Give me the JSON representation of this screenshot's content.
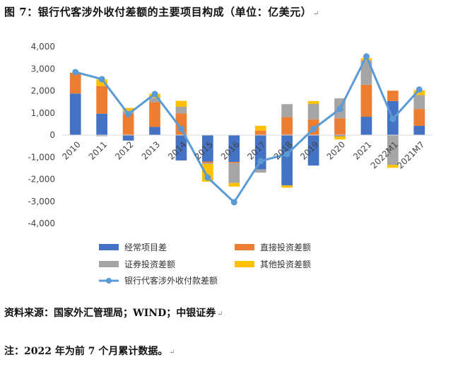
{
  "figure_title": "图 7：银行代客涉外收付差额的主要项目构成（单位：亿美元）",
  "para_mark": "↵",
  "source": "资料来源：国家外汇管理局；WIND；中银证券",
  "note": "注：2022 年为前 7 个月累计数据。",
  "colors": {
    "current_account": "#4472C4",
    "direct_investment": "#ED7D31",
    "securities": "#A5A5A5",
    "other": "#FFC000",
    "line": "#5B9BD5"
  },
  "chart_data": {
    "type": "bar",
    "stacked": true,
    "title": "",
    "xlabel": "",
    "ylabel": "",
    "categories": [
      "2010",
      "2011",
      "2012",
      "2013",
      "2014",
      "2015",
      "2016",
      "2017",
      "2018",
      "2019",
      "2020",
      "2021",
      "2022M1",
      "2021M7"
    ],
    "ylim": [
      -4000,
      4000
    ],
    "yticks": [
      "4,000",
      "3,000",
      "2,000",
      "1,000",
      "0",
      "-1,000",
      "-2,000",
      "-3,000",
      "-4,000"
    ],
    "grid": false,
    "legend_position": "bottom",
    "series": [
      {
        "name": "经常项目差",
        "color_key": "current_account",
        "values": [
          1880,
          970,
          -250,
          370,
          -1150,
          -1200,
          -1220,
          -1550,
          -2280,
          -1380,
          -50,
          830,
          1540,
          420
        ]
      },
      {
        "name": "直接投资差额",
        "color_key": "direct_investment",
        "values": [
          940,
          1250,
          980,
          1120,
          980,
          -60,
          -50,
          200,
          820,
          710,
          760,
          1450,
          470,
          760
        ]
      },
      {
        "name": "证券投资差额",
        "color_key": "securities",
        "values": [
          0,
          -50,
          100,
          200,
          300,
          -50,
          -900,
          -150,
          580,
          700,
          900,
          1100,
          -1350,
          630
        ]
      },
      {
        "name": "其他投资差额",
        "color_key": "other",
        "values": [
          0,
          300,
          150,
          180,
          270,
          -800,
          -160,
          220,
          -100,
          130,
          -150,
          100,
          -130,
          220
        ]
      }
    ],
    "line": {
      "name": "银行代客涉外收付款差额",
      "values": [
        2850,
        2530,
        950,
        1860,
        280,
        -1920,
        -3040,
        -1180,
        -860,
        280,
        1180,
        3560,
        730,
        2060
      ]
    }
  }
}
